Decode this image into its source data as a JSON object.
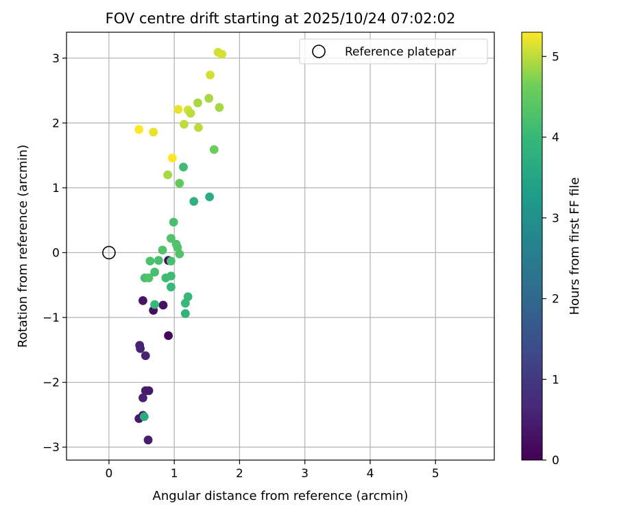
{
  "chart_data": {
    "type": "scatter",
    "title": "FOV centre drift starting at 2025/10/24 07:02:02",
    "xlabel": "Angular distance from reference (arcmin)",
    "ylabel": "Rotation from reference (arcmin)",
    "xlim": [
      -0.65,
      5.9
    ],
    "ylim": [
      -3.2,
      3.4
    ],
    "xticks": [
      0,
      1,
      2,
      3,
      4,
      5
    ],
    "yticks": [
      -3,
      -2,
      -1,
      0,
      1,
      2,
      3
    ],
    "grid": true,
    "legend": {
      "placement": "top-right",
      "label": "Reference platepar"
    },
    "reference_point": {
      "x": 0,
      "y": 0
    },
    "colorbar": {
      "label": "Hours from first FF file",
      "colormap": "viridis",
      "range": [
        0,
        5.3
      ],
      "ticks": [
        0,
        1,
        2,
        3,
        4,
        5
      ]
    },
    "points": [
      {
        "x": 0.47,
        "y": -1.43,
        "c": 0.55
      },
      {
        "x": 0.48,
        "y": -1.48,
        "c": 0.55
      },
      {
        "x": 0.56,
        "y": -1.59,
        "c": 0.6
      },
      {
        "x": 0.52,
        "y": -0.74,
        "c": 0.3
      },
      {
        "x": 0.68,
        "y": -0.89,
        "c": 0.2
      },
      {
        "x": 0.83,
        "y": -0.81,
        "c": 0.25
      },
      {
        "x": 0.91,
        "y": -1.28,
        "c": 0.1
      },
      {
        "x": 0.91,
        "y": -0.12,
        "c": 0.2
      },
      {
        "x": 0.56,
        "y": -2.13,
        "c": 0.5
      },
      {
        "x": 0.61,
        "y": -2.13,
        "c": 0.45
      },
      {
        "x": 0.52,
        "y": -2.24,
        "c": 0.55
      },
      {
        "x": 0.46,
        "y": -2.56,
        "c": 0.4
      },
      {
        "x": 0.52,
        "y": -2.51,
        "c": 0.4
      },
      {
        "x": 0.54,
        "y": -2.53,
        "c": 3.7
      },
      {
        "x": 0.6,
        "y": -2.89,
        "c": 0.5
      },
      {
        "x": 0.55,
        "y": -0.39,
        "c": 4.2
      },
      {
        "x": 0.61,
        "y": -0.39,
        "c": 4.3
      },
      {
        "x": 0.63,
        "y": -0.13,
        "c": 4.25
      },
      {
        "x": 0.7,
        "y": -0.3,
        "c": 4.2
      },
      {
        "x": 0.7,
        "y": -0.8,
        "c": 4.0
      },
      {
        "x": 0.76,
        "y": -0.12,
        "c": 4.2
      },
      {
        "x": 0.82,
        "y": 0.04,
        "c": 4.3
      },
      {
        "x": 0.87,
        "y": -0.39,
        "c": 4.1
      },
      {
        "x": 0.95,
        "y": -0.36,
        "c": 4.1
      },
      {
        "x": 0.95,
        "y": -0.13,
        "c": 4.2
      },
      {
        "x": 0.95,
        "y": -0.53,
        "c": 4.0
      },
      {
        "x": 0.95,
        "y": 0.22,
        "c": 4.3
      },
      {
        "x": 0.99,
        "y": 0.47,
        "c": 4.2
      },
      {
        "x": 1.03,
        "y": 0.13,
        "c": 4.3
      },
      {
        "x": 1.05,
        "y": 0.08,
        "c": 4.3
      },
      {
        "x": 1.08,
        "y": -0.02,
        "c": 4.3
      },
      {
        "x": 1.17,
        "y": -0.78,
        "c": 4.0
      },
      {
        "x": 1.17,
        "y": -0.94,
        "c": 3.9
      },
      {
        "x": 1.21,
        "y": -0.68,
        "c": 4.0
      },
      {
        "x": 1.3,
        "y": 0.79,
        "c": 3.8
      },
      {
        "x": 1.54,
        "y": 0.86,
        "c": 3.7
      },
      {
        "x": 1.14,
        "y": 1.32,
        "c": 4.1
      },
      {
        "x": 1.08,
        "y": 1.07,
        "c": 4.5
      },
      {
        "x": 0.9,
        "y": 1.2,
        "c": 4.9
      },
      {
        "x": 0.97,
        "y": 1.46,
        "c": 5.3
      },
      {
        "x": 1.61,
        "y": 1.59,
        "c": 4.6
      },
      {
        "x": 0.46,
        "y": 1.9,
        "c": 5.3
      },
      {
        "x": 0.68,
        "y": 1.86,
        "c": 5.2
      },
      {
        "x": 1.15,
        "y": 1.98,
        "c": 5.0
      },
      {
        "x": 1.37,
        "y": 1.93,
        "c": 5.0
      },
      {
        "x": 1.06,
        "y": 2.21,
        "c": 5.2
      },
      {
        "x": 1.21,
        "y": 2.2,
        "c": 5.1
      },
      {
        "x": 1.25,
        "y": 2.15,
        "c": 5.0
      },
      {
        "x": 1.36,
        "y": 2.31,
        "c": 4.9
      },
      {
        "x": 1.53,
        "y": 2.38,
        "c": 4.9
      },
      {
        "x": 1.69,
        "y": 2.24,
        "c": 4.9
      },
      {
        "x": 1.55,
        "y": 2.74,
        "c": 5.1
      },
      {
        "x": 1.67,
        "y": 3.09,
        "c": 5.1
      },
      {
        "x": 1.73,
        "y": 3.06,
        "c": 5.1
      }
    ]
  }
}
